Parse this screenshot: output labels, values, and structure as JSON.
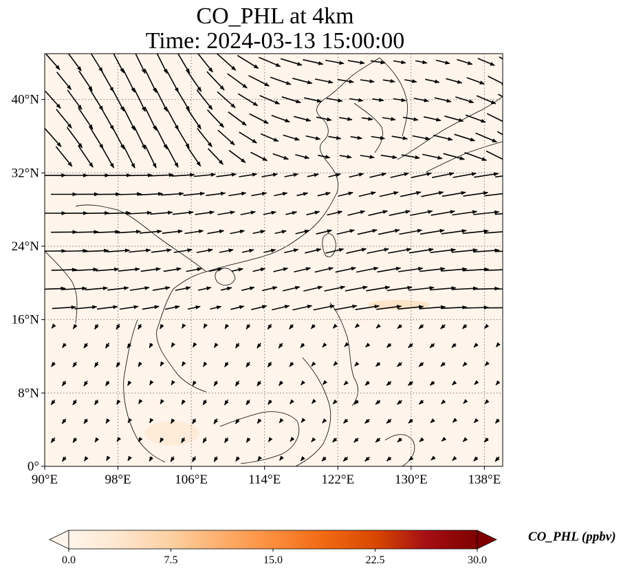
{
  "title_line_1": "CO_PHL at 4km",
  "title_line_2": "Time: 2024-03-13 15:00:00",
  "map": {
    "lon_range": [
      90,
      140
    ],
    "lat_range": [
      0,
      45
    ],
    "lon_ticks": [
      90,
      98,
      106,
      114,
      122,
      130,
      138
    ],
    "lon_tick_labels": [
      "90°E",
      "98°E",
      "106°E",
      "114°E",
      "122°E",
      "130°E",
      "138°E"
    ],
    "lat_ticks": [
      0,
      8,
      16,
      24,
      32,
      40
    ],
    "lat_tick_labels": [
      "0°",
      "8°N",
      "16°N",
      "24°N",
      "32°N",
      "40°N"
    ],
    "gridlines": true,
    "background_color": "#fff5eb",
    "coastline_color": "#000000",
    "vector_color": "#000000"
  },
  "colorbar": {
    "label": "CO_PHL (ppbv)",
    "range": [
      0,
      30
    ],
    "ticks": [
      0,
      7.5,
      15,
      22.5,
      30
    ],
    "tick_labels": [
      "0.0",
      "7.5",
      "15.0",
      "22.5",
      "30.0"
    ],
    "extend": "both",
    "colormap": [
      "#fff5eb",
      "#fee6ce",
      "#fdd0a2",
      "#fdae6b",
      "#fd8d3c",
      "#f16913",
      "#d94801",
      "#a50f15",
      "#7f0000"
    ]
  }
}
